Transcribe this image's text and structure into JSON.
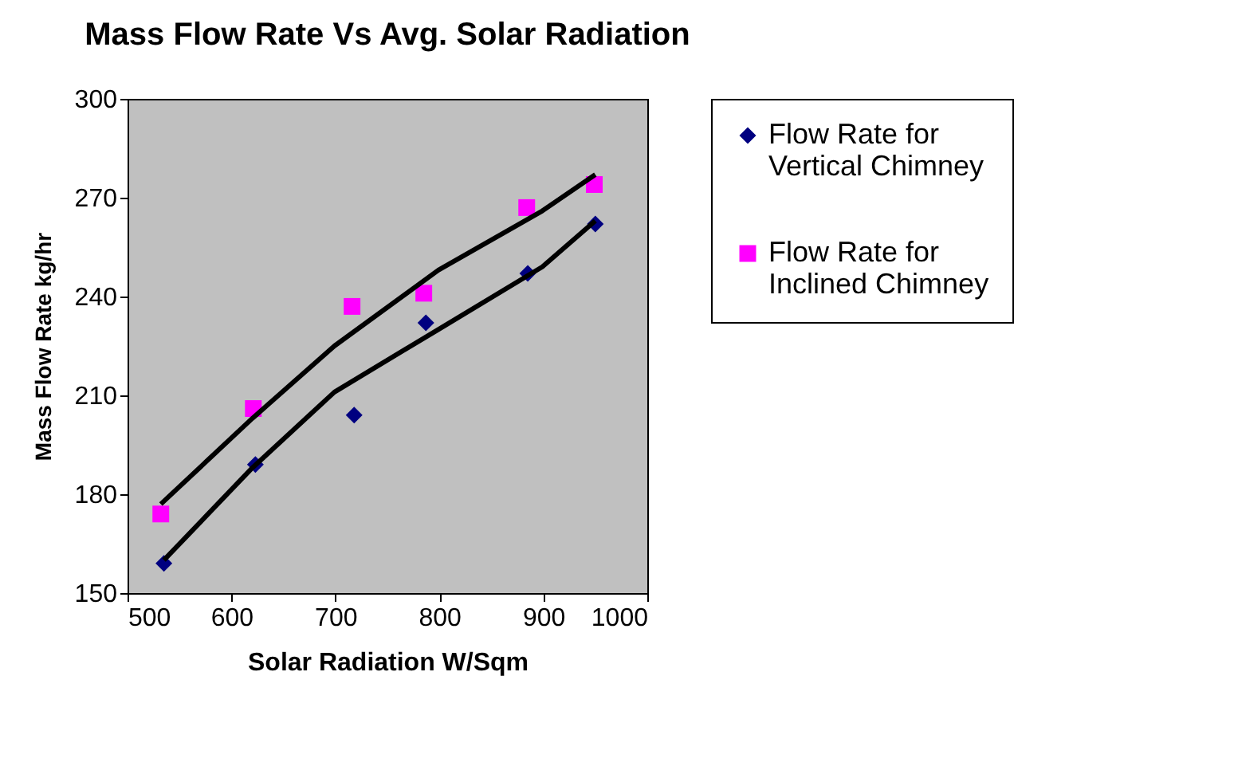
{
  "chart_data": {
    "type": "scatter",
    "title": "Mass Flow Rate Vs Avg. Solar Radiation",
    "xlabel": "Solar Radiation W/Sqm",
    "ylabel": "Mass Flow Rate kg/hr",
    "xlim": [
      500,
      1000
    ],
    "xticks": [
      500,
      600,
      700,
      800,
      900,
      1000
    ],
    "ylim": [
      150,
      300
    ],
    "yticks": [
      150,
      180,
      210,
      240,
      270,
      300
    ],
    "grid": false,
    "legend": "right",
    "series": [
      {
        "name": "Flow Rate for Vertical Chimney",
        "color": "#000080",
        "marker": "diamond",
        "x": [
          535,
          623,
          718,
          787,
          885,
          950
        ],
        "values": [
          159,
          189,
          204,
          232,
          247,
          262
        ]
      },
      {
        "name": "Flow Rate for Inclined Chimney",
        "color": "#ff00ff",
        "marker": "square",
        "x": [
          532,
          621,
          716,
          785,
          884,
          949
        ],
        "values": [
          174,
          206,
          237,
          241,
          267,
          274
        ]
      },
      {
        "type": "line",
        "color": "#000000",
        "marker": "none",
        "x": [
          535,
          620,
          699,
          799,
          899,
          950
        ],
        "values": [
          160,
          188,
          211,
          230,
          249,
          263
        ]
      },
      {
        "type": "line",
        "color": "#000000",
        "marker": "none",
        "x": [
          532,
          620,
          699,
          799,
          899,
          950
        ],
        "values": [
          177,
          203,
          225,
          248,
          266,
          277
        ]
      }
    ]
  }
}
